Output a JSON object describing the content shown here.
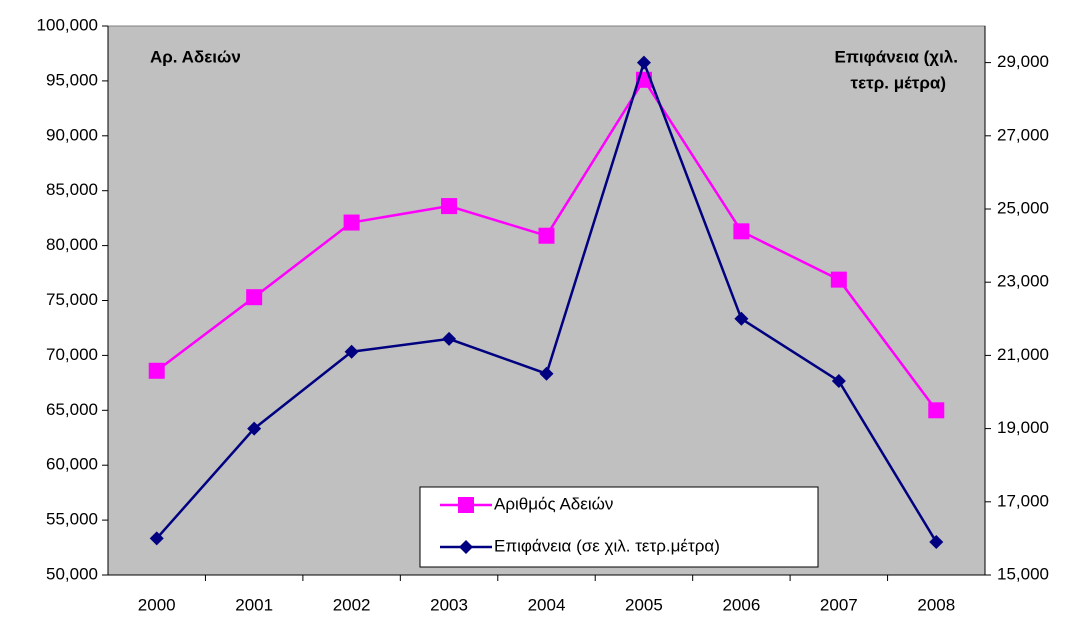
{
  "chart_data": {
    "type": "line",
    "y_label": "Αρ. Αδειών",
    "y2_label": [
      "Επιφάνεια (χιλ.",
      "τετρ. μέτρα)"
    ],
    "categories": [
      "2000",
      "2001",
      "2002",
      "2003",
      "2004",
      "2005",
      "2006",
      "2007",
      "2008"
    ],
    "series": [
      {
        "name": "Αριθμός Αδειών",
        "color": "#ff00ff",
        "marker": "square",
        "values": [
          68600,
          75300,
          82100,
          83600,
          80900,
          95100,
          81300,
          76900,
          65000
        ]
      },
      {
        "name": "Επιφάνεια (σε χιλ. τετρ.μέτρα)",
        "color": "#000080",
        "marker": "diamond",
        "axis": "y2",
        "values": [
          16000,
          19000,
          21100,
          21450,
          20500,
          29000,
          22000,
          20300,
          15900
        ]
      }
    ],
    "ylim": [
      50000,
      100000
    ],
    "yticks": [
      {
        "value": 50000,
        "label": "50,000"
      },
      {
        "value": 55000,
        "label": "55,000"
      },
      {
        "value": 60000,
        "label": "60,000"
      },
      {
        "value": 65000,
        "label": "65,000"
      },
      {
        "value": 70000,
        "label": "70,000"
      },
      {
        "value": 75000,
        "label": "75,000"
      },
      {
        "value": 80000,
        "label": "80,000"
      },
      {
        "value": 85000,
        "label": "85,000"
      },
      {
        "value": 90000,
        "label": "90,000"
      },
      {
        "value": 95000,
        "label": "95,000"
      },
      {
        "value": 100000,
        "label": "100,000"
      }
    ],
    "y2lim": [
      15000,
      30000
    ],
    "y2ticks": [
      {
        "value": 15000,
        "label": "15,000"
      },
      {
        "value": 17000,
        "label": "17,000"
      },
      {
        "value": 19000,
        "label": "19,000"
      },
      {
        "value": 21000,
        "label": "21,000"
      },
      {
        "value": 23000,
        "label": "23,000"
      },
      {
        "value": 25000,
        "label": "25,000"
      },
      {
        "value": 27000,
        "label": "27,000"
      },
      {
        "value": 29000,
        "label": "29,000"
      }
    ],
    "plot_background": "#c0c0c0"
  }
}
